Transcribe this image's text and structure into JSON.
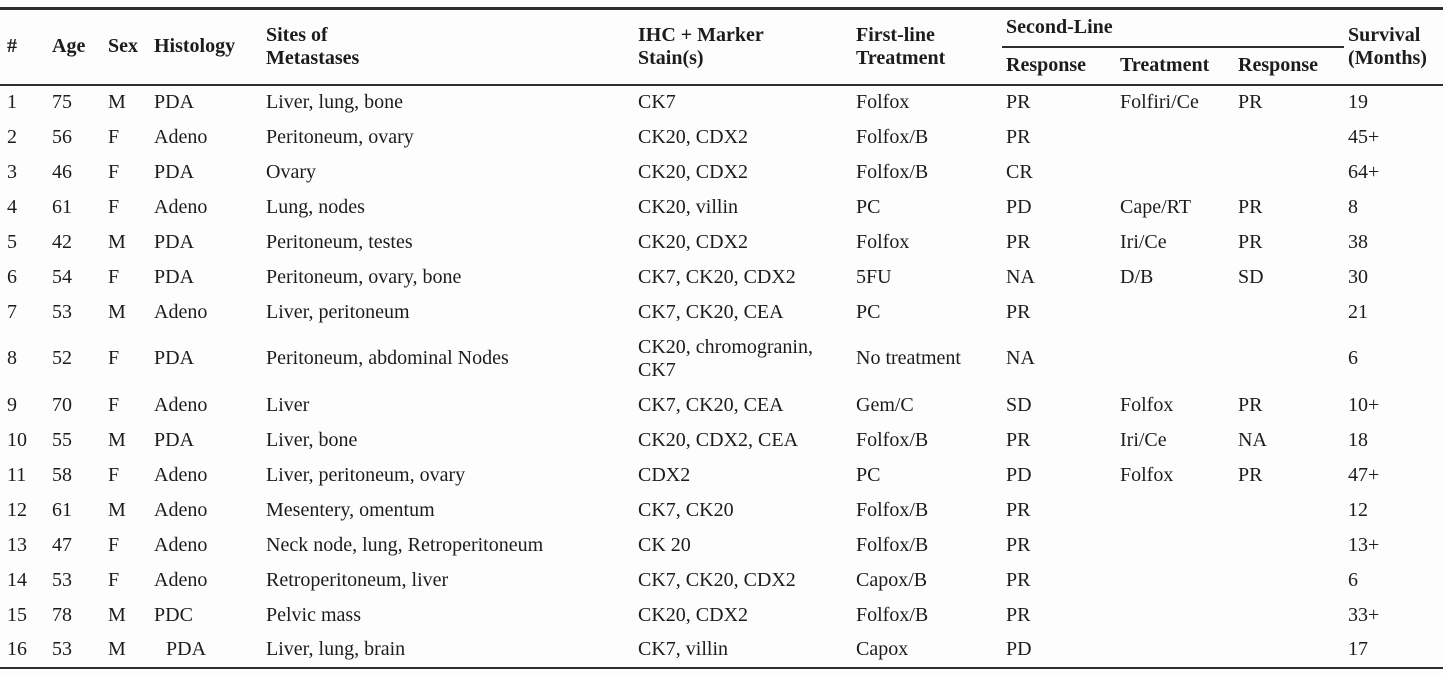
{
  "table": {
    "col_keys": [
      "num",
      "age",
      "sex",
      "histology",
      "sites",
      "ihc",
      "first_line",
      "second_line_response",
      "second_line_treatment",
      "second_line_response2",
      "survival"
    ],
    "header": {
      "num": "#",
      "age": "Age",
      "sex": "Sex",
      "histology": "Histology",
      "sites": "Sites of\nMetastases",
      "ihc": "IHC + Marker\nStain(s)",
      "first_line": "First-line\nTreatment",
      "second_line_group": "Second-Line",
      "second_line_response": "Response",
      "second_line_treatment": "Treatment",
      "second_line_response2": "Response",
      "survival": "Survival\n(Months)"
    },
    "rows": [
      [
        "1",
        "75",
        "M",
        "PDA",
        "Liver, lung, bone",
        "CK7",
        "Folfox",
        "PR",
        "Folfiri/Ce",
        "PR",
        "19"
      ],
      [
        "2",
        "56",
        "F",
        "Adeno",
        "Peritoneum, ovary",
        "CK20, CDX2",
        "Folfox/B",
        "PR",
        "",
        "",
        "45+"
      ],
      [
        "3",
        "46",
        "F",
        "PDA",
        "Ovary",
        "CK20, CDX2",
        "Folfox/B",
        "CR",
        "",
        "",
        "64+"
      ],
      [
        "4",
        "61",
        "F",
        "Adeno",
        "Lung, nodes",
        "CK20, villin",
        "PC",
        "PD",
        "Cape/RT",
        "PR",
        "8"
      ],
      [
        "5",
        "42",
        "M",
        "PDA",
        "Peritoneum, testes",
        "CK20, CDX2",
        "Folfox",
        "PR",
        "Iri/Ce",
        "PR",
        "38"
      ],
      [
        "6",
        "54",
        "F",
        "PDA",
        "Peritoneum, ovary, bone",
        "CK7, CK20, CDX2",
        "5FU",
        "NA",
        "D/B",
        "SD",
        "30"
      ],
      [
        "7",
        "53",
        "M",
        "Adeno",
        "Liver, peritoneum",
        "CK7, CK20, CEA",
        "PC",
        "PR",
        "",
        "",
        "21"
      ],
      [
        "8",
        "52",
        "F",
        "PDA",
        "Peritoneum, abdominal Nodes",
        "CK20, chromogranin,\nCK7",
        "No treatment",
        "NA",
        "",
        "",
        "6"
      ],
      [
        "9",
        "70",
        "F",
        "Adeno",
        "Liver",
        "CK7, CK20, CEA",
        "Gem/C",
        "SD",
        "Folfox",
        "PR",
        "10+"
      ],
      [
        "10",
        "55",
        "M",
        "PDA",
        "Liver, bone",
        "CK20, CDX2, CEA",
        "Folfox/B",
        "PR",
        "Iri/Ce",
        "NA",
        "18"
      ],
      [
        "11",
        "58",
        "F",
        "Adeno",
        "Liver, peritoneum, ovary",
        "CDX2",
        "PC",
        "PD",
        "Folfox",
        "PR",
        "47+"
      ],
      [
        "12",
        "61",
        "M",
        "Adeno",
        "Mesentery, omentum",
        "CK7, CK20",
        "Folfox/B",
        "PR",
        "",
        "",
        "12"
      ],
      [
        "13",
        "47",
        "F",
        "Adeno",
        "Neck node, lung, Retroperitoneum",
        "CK 20",
        "Folfox/B",
        "PR",
        "",
        "",
        "13+"
      ],
      [
        "14",
        "53",
        "F",
        "Adeno",
        "Retroperitoneum, liver",
        "CK7, CK20, CDX2",
        "Capox/B",
        "PR",
        "",
        "",
        "6"
      ],
      [
        "15",
        "78",
        "M",
        "PDC",
        "Pelvic mass",
        "CK20, CDX2",
        "Folfox/B",
        "PR",
        "",
        "",
        "33+"
      ],
      [
        "16",
        "53",
        "M",
        "PDA",
        "Liver, lung, brain",
        "CK7, villin",
        "Capox",
        "PD",
        "",
        "",
        "17"
      ]
    ]
  }
}
